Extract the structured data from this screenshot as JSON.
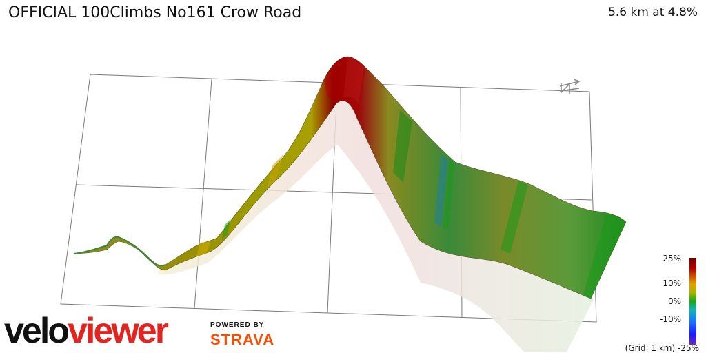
{
  "header": {
    "title": "OFFICIAL 100Climbs No161 Crow Road",
    "summary": "5.6 km at 4.8%"
  },
  "scene": {
    "compass_label": "N",
    "compass_icon": "north-arrow-icon"
  },
  "legend": {
    "labels": [
      "25%",
      "10%",
      "0%",
      "-10%",
      "-25%"
    ],
    "grid_note": "(Grid: 1 km)",
    "colors": {
      "max": "#6b0000",
      "high": "#b40000",
      "mid_high": "#a9b400",
      "zero": "#1aa61a",
      "neg": "#10b5b5",
      "low": "#1a1aff",
      "min": "#6a2bb5"
    }
  },
  "branding": {
    "logo_part1": "velo",
    "logo_part2": "viewer",
    "powered_by": "POWERED BY",
    "strava": "STRAVA"
  }
}
